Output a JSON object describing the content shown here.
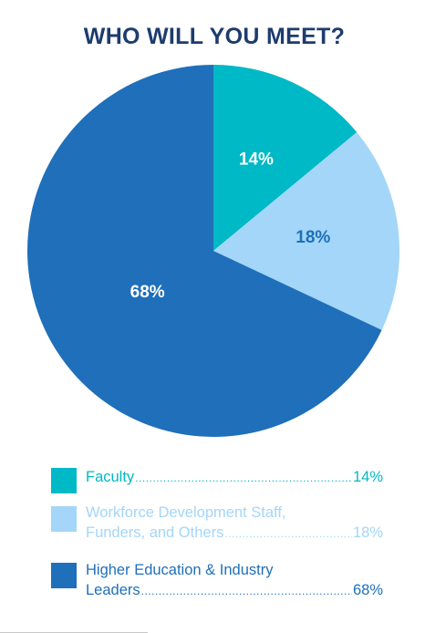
{
  "chart_data": {
    "type": "pie",
    "title": "WHO WILL YOU MEET?",
    "slices": [
      {
        "label": "Faculty",
        "value": 14,
        "display": "14%",
        "color": "#00b9c6",
        "label_color": "#ffffff"
      },
      {
        "label": "Workforce Development Staff, Funders, and Others",
        "value": 18,
        "display": "18%",
        "color": "#a3d6f8",
        "label_color": "#1f6fba"
      },
      {
        "label": "Higher Education & Industry Leaders",
        "value": 68,
        "display": "68%",
        "color": "#1f6fba",
        "label_color": "#ffffff"
      }
    ],
    "legend_position": "bottom"
  },
  "legend": [
    {
      "line1": "Faculty",
      "line2": "",
      "value": "14%",
      "color": "#00b9c6"
    },
    {
      "line1": "Workforce Development Staff,",
      "line2": "Funders, and Others",
      "value": "18%",
      "color": "#a3d6f8"
    },
    {
      "line1": "Higher Education & Industry",
      "line2": "Leaders",
      "value": "68%",
      "color": "#1f6fba"
    }
  ]
}
